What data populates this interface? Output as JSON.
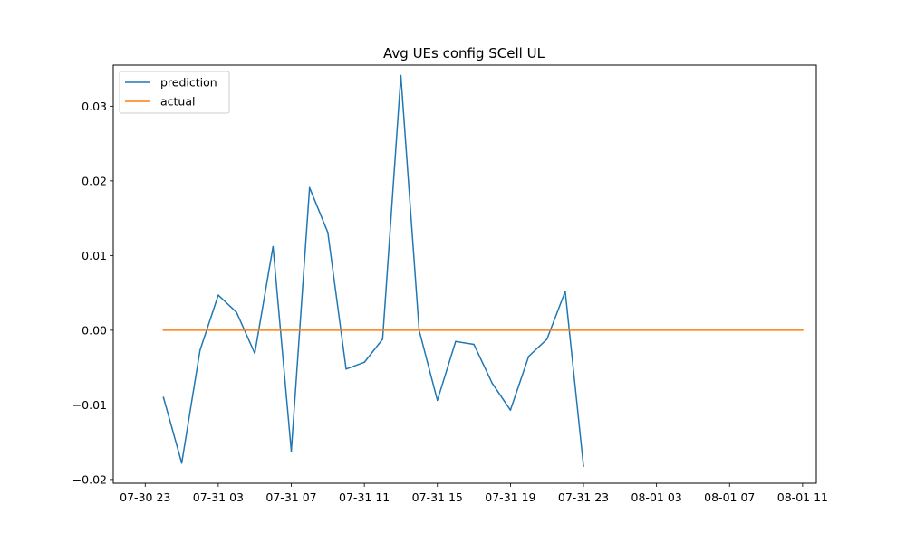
{
  "chart_data": {
    "type": "line",
    "title": "Avg UEs config SCell UL",
    "xlabel": "",
    "ylabel": "",
    "x_start": "2023-07-30 23:00",
    "x_step_hours": 1,
    "x_ticks": [
      "07-30 23",
      "07-31 03",
      "07-31 07",
      "07-31 11",
      "07-31 15",
      "07-31 19",
      "07-31 23",
      "08-01 03",
      "08-01 07",
      "08-01 11"
    ],
    "y_ticks": [
      -0.02,
      -0.01,
      0.0,
      0.01,
      0.02,
      0.03
    ],
    "y_tick_labels": [
      "−0.02",
      "−0.01",
      "0.00",
      "0.01",
      "0.02",
      "0.03"
    ],
    "ylim": [
      -0.0205,
      0.0355
    ],
    "legend": {
      "position": "upper-left"
    },
    "grid": false,
    "series": [
      {
        "name": "prediction",
        "color": "#1f77b4",
        "x": [
          "2023-07-31 00:00",
          "2023-07-31 01:00",
          "2023-07-31 02:00",
          "2023-07-31 03:00",
          "2023-07-31 04:00",
          "2023-07-31 05:00",
          "2023-07-31 06:00",
          "2023-07-31 07:00",
          "2023-07-31 08:00",
          "2023-07-31 09:00",
          "2023-07-31 10:00",
          "2023-07-31 11:00",
          "2023-07-31 12:00",
          "2023-07-31 13:00",
          "2023-07-31 14:00",
          "2023-07-31 15:00",
          "2023-07-31 16:00",
          "2023-07-31 17:00",
          "2023-07-31 18:00",
          "2023-07-31 19:00",
          "2023-07-31 20:00",
          "2023-07-31 21:00",
          "2023-07-31 22:00",
          "2023-07-31 23:00"
        ],
        "values": [
          -0.009,
          -0.0178,
          -0.0027,
          0.0047,
          0.0024,
          -0.0031,
          0.0112,
          -0.0162,
          0.0191,
          0.0131,
          -0.0052,
          -0.0043,
          -0.0012,
          0.0341,
          0.0,
          -0.0094,
          -0.0015,
          -0.0019,
          -0.0071,
          -0.0107,
          -0.0035,
          -0.0012,
          0.0052,
          -0.0182
        ]
      },
      {
        "name": "actual",
        "color": "#ff7f0e",
        "x": [
          "2023-07-31 00:00",
          "2023-08-01 11:00"
        ],
        "values": [
          0.0,
          0.0
        ]
      }
    ]
  }
}
